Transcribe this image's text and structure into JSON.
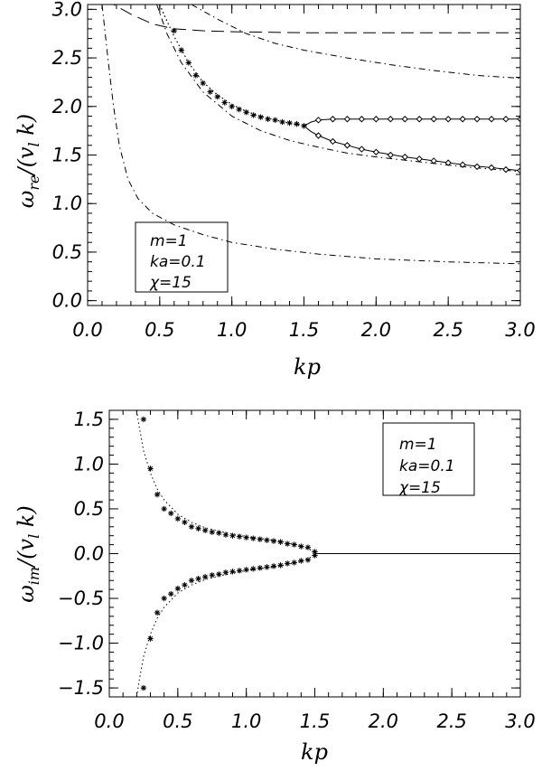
{
  "chart_data": [
    {
      "type": "line",
      "xlabel": "kp",
      "ylabel_omega": "ω",
      "ylabel_sub": "re",
      "ylabel_rest": "/(v",
      "ylabel_vsub": "l",
      "ylabel_end": " k)",
      "xlim": [
        0.0,
        3.0
      ],
      "ylim": [
        -0.05,
        3.05
      ],
      "xticks": [
        "0.0",
        "0.5",
        "1.0",
        "1.5",
        "2.0",
        "2.5",
        "3.0"
      ],
      "yticks": [
        "0.0",
        "0.5",
        "1.0",
        "1.5",
        "2.0",
        "2.5",
        "3.0"
      ],
      "legend": [
        "m=1",
        "ka=0.1",
        "χ=15"
      ],
      "series": [
        {
          "style": "long-dash",
          "x": [
            0.0,
            0.3,
            0.45,
            0.6,
            0.8,
            1.0,
            1.5,
            2.0,
            2.5,
            3.0
          ],
          "y": [
            3.2,
            2.95,
            2.85,
            2.8,
            2.78,
            2.77,
            2.76,
            2.76,
            2.76,
            2.76
          ]
        },
        {
          "style": "dash-dot",
          "x": [
            0.72,
            0.9,
            1.1,
            1.3,
            1.5,
            1.8,
            2.1,
            2.4,
            2.7,
            3.0
          ],
          "y": [
            3.05,
            2.9,
            2.75,
            2.65,
            2.58,
            2.5,
            2.43,
            2.37,
            2.32,
            2.29
          ]
        },
        {
          "style": "dash-dot",
          "x": [
            0.08,
            0.1,
            0.14,
            0.18,
            0.22,
            0.28,
            0.35,
            0.45,
            0.6,
            0.8,
            1.0,
            1.3,
            1.6,
            2.0,
            2.5,
            3.0
          ],
          "y": [
            3.2,
            3.05,
            2.5,
            2.0,
            1.6,
            1.25,
            1.05,
            0.9,
            0.78,
            0.68,
            0.6,
            0.53,
            0.48,
            0.43,
            0.4,
            0.38
          ]
        },
        {
          "style": "dash-dot",
          "x": [
            0.48,
            0.55,
            0.65,
            0.8,
            1.0,
            1.2,
            1.4,
            1.6,
            1.8,
            2.0,
            2.3,
            2.6,
            3.0
          ],
          "y": [
            3.05,
            2.75,
            2.45,
            2.15,
            1.9,
            1.75,
            1.65,
            1.58,
            1.52,
            1.48,
            1.43,
            1.38,
            1.33
          ]
        },
        {
          "style": "dotted",
          "x": [
            0.5,
            0.55,
            0.6,
            0.7,
            0.8,
            0.9,
            1.0,
            1.1,
            1.2,
            1.3,
            1.4,
            1.5
          ],
          "y": [
            3.05,
            2.88,
            2.72,
            2.45,
            2.25,
            2.12,
            2.02,
            1.95,
            1.9,
            1.86,
            1.83,
            1.8
          ]
        },
        {
          "style": "dotted",
          "x": [
            0.5,
            0.55,
            0.6,
            0.7,
            0.8,
            0.9,
            1.0,
            1.1,
            1.2,
            1.3,
            1.4,
            1.5
          ],
          "y": [
            3.05,
            2.88,
            2.72,
            2.45,
            2.25,
            2.12,
            2.02,
            1.95,
            1.9,
            1.86,
            1.83,
            1.8
          ]
        },
        {
          "style": "solid",
          "x": [
            1.5,
            1.55,
            1.6,
            1.7,
            1.8,
            2.0,
            2.5,
            3.0
          ],
          "y": [
            1.8,
            1.84,
            1.86,
            1.87,
            1.87,
            1.87,
            1.87,
            1.87
          ]
        },
        {
          "style": "solid",
          "x": [
            1.5,
            1.55,
            1.6,
            1.7,
            1.8,
            1.9,
            2.0,
            2.2,
            2.4,
            2.6,
            2.8,
            3.0
          ],
          "y": [
            1.8,
            1.74,
            1.7,
            1.64,
            1.6,
            1.56,
            1.53,
            1.48,
            1.44,
            1.4,
            1.37,
            1.34
          ]
        }
      ],
      "star_markers": {
        "x": [
          0.6,
          0.65,
          0.7,
          0.75,
          0.8,
          0.85,
          0.9,
          0.95,
          1.0,
          1.05,
          1.1,
          1.15,
          1.2,
          1.25,
          1.3,
          1.35,
          1.4,
          1.45,
          1.5
        ],
        "y": [
          2.78,
          2.58,
          2.45,
          2.32,
          2.24,
          2.15,
          2.1,
          2.04,
          2.0,
          1.97,
          1.94,
          1.91,
          1.89,
          1.87,
          1.86,
          1.84,
          1.83,
          1.82,
          1.8
        ]
      },
      "diamond_markers_upper": {
        "x": [
          1.6,
          1.7,
          1.8,
          1.9,
          2.0,
          2.1,
          2.2,
          2.3,
          2.4,
          2.5,
          2.6,
          2.7,
          2.8,
          2.9,
          3.0
        ],
        "y": [
          1.86,
          1.87,
          1.87,
          1.87,
          1.87,
          1.87,
          1.87,
          1.87,
          1.87,
          1.87,
          1.87,
          1.87,
          1.87,
          1.87,
          1.87
        ]
      },
      "diamond_markers_lower": {
        "x": [
          1.6,
          1.7,
          1.8,
          1.9,
          2.0,
          2.1,
          2.2,
          2.3,
          2.4,
          2.5,
          2.6,
          2.7,
          2.8,
          2.9,
          3.0
        ],
        "y": [
          1.7,
          1.64,
          1.6,
          1.56,
          1.53,
          1.5,
          1.48,
          1.46,
          1.44,
          1.42,
          1.4,
          1.38,
          1.37,
          1.35,
          1.34
        ]
      }
    },
    {
      "type": "line",
      "xlabel": "kp",
      "ylabel_omega": "ω",
      "ylabel_sub": "im",
      "ylabel_rest": "/(v",
      "ylabel_vsub": "l",
      "ylabel_end": " k)",
      "xlim": [
        0.0,
        3.0
      ],
      "ylim": [
        -1.6,
        1.6
      ],
      "xticks": [
        "0.0",
        "0.5",
        "1.0",
        "1.5",
        "2.0",
        "2.5",
        "3.0"
      ],
      "yticks": [
        "−1.5",
        "−1.0",
        "−0.5",
        "0.0",
        "0.5",
        "1.0",
        "1.5"
      ],
      "ytick_values": [
        -1.5,
        -1.0,
        -0.5,
        0.0,
        0.5,
        1.0,
        1.5
      ],
      "legend": [
        "m=1",
        "ka=0.1",
        "χ=15"
      ],
      "series": [
        {
          "style": "dotted",
          "x": [
            0.2,
            0.22,
            0.25,
            0.3,
            0.35,
            0.4,
            0.5,
            0.6,
            0.7,
            0.8,
            0.9,
            1.0,
            1.1,
            1.2,
            1.3,
            1.4,
            1.5
          ],
          "y": [
            1.6,
            1.4,
            1.15,
            0.9,
            0.72,
            0.6,
            0.44,
            0.35,
            0.29,
            0.25,
            0.22,
            0.19,
            0.17,
            0.15,
            0.12,
            0.09,
            0.02
          ]
        },
        {
          "style": "dotted",
          "x": [
            0.2,
            0.22,
            0.25,
            0.3,
            0.35,
            0.4,
            0.5,
            0.6,
            0.7,
            0.8,
            0.9,
            1.0,
            1.1,
            1.2,
            1.3,
            1.4,
            1.5
          ],
          "y": [
            -1.6,
            -1.4,
            -1.15,
            -0.9,
            -0.72,
            -0.6,
            -0.44,
            -0.35,
            -0.29,
            -0.25,
            -0.22,
            -0.19,
            -0.17,
            -0.15,
            -0.12,
            -0.09,
            -0.02
          ]
        },
        {
          "style": "solid",
          "x": [
            1.5,
            3.0
          ],
          "y": [
            0.0,
            0.0
          ]
        }
      ],
      "star_markers": {
        "x": [
          0.25,
          0.3,
          0.35,
          0.4,
          0.45,
          0.5,
          0.55,
          0.6,
          0.65,
          0.7,
          0.75,
          0.8,
          0.85,
          0.9,
          0.95,
          1.0,
          1.05,
          1.1,
          1.15,
          1.2,
          1.25,
          1.3,
          1.35,
          1.4,
          1.45,
          1.5,
          0.25,
          0.3,
          0.35,
          0.4,
          0.45,
          0.5,
          0.55,
          0.6,
          0.65,
          0.7,
          0.75,
          0.8,
          0.85,
          0.9,
          0.95,
          1.0,
          1.05,
          1.1,
          1.15,
          1.2,
          1.25,
          1.3,
          1.35,
          1.4,
          1.45,
          1.5
        ],
        "y": [
          1.5,
          0.95,
          0.66,
          0.5,
          0.45,
          0.39,
          0.35,
          0.3,
          0.28,
          0.26,
          0.24,
          0.23,
          0.21,
          0.2,
          0.19,
          0.18,
          0.17,
          0.16,
          0.15,
          0.14,
          0.13,
          0.11,
          0.1,
          0.08,
          0.07,
          0.02,
          -1.5,
          -0.95,
          -0.66,
          -0.5,
          -0.45,
          -0.39,
          -0.35,
          -0.3,
          -0.28,
          -0.26,
          -0.24,
          -0.23,
          -0.21,
          -0.2,
          -0.19,
          -0.18,
          -0.17,
          -0.16,
          -0.15,
          -0.14,
          -0.13,
          -0.11,
          -0.1,
          -0.08,
          -0.07,
          -0.02
        ]
      }
    }
  ]
}
